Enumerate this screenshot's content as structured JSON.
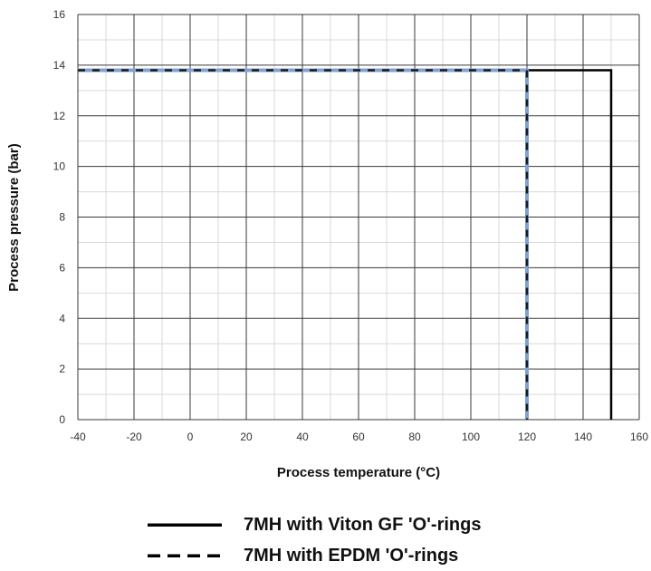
{
  "chart_data": {
    "type": "line",
    "xlabel": "Process temperature (°C)",
    "ylabel": "Process pressure (bar)",
    "xlim": [
      -40,
      160
    ],
    "ylim": [
      0,
      16
    ],
    "x_ticks": [
      -40,
      -20,
      0,
      20,
      40,
      60,
      80,
      100,
      120,
      140,
      160
    ],
    "y_ticks": [
      0,
      2,
      4,
      6,
      8,
      10,
      12,
      14,
      16
    ],
    "grid": true,
    "legend_position": "bottom",
    "series": [
      {
        "name": "7MH with Viton GF 'O'-rings",
        "style": "solid",
        "color": "#000000",
        "points": [
          [
            -40,
            13.8
          ],
          [
            150,
            13.8
          ],
          [
            150,
            0
          ]
        ]
      },
      {
        "name": "7MH with EPDM 'O'-rings",
        "style": "dashed",
        "color": "#1a1a1a",
        "overlay_color": "#7ea2d6",
        "points": [
          [
            -40,
            13.8
          ],
          [
            120,
            13.8
          ],
          [
            120,
            0
          ]
        ]
      }
    ]
  }
}
